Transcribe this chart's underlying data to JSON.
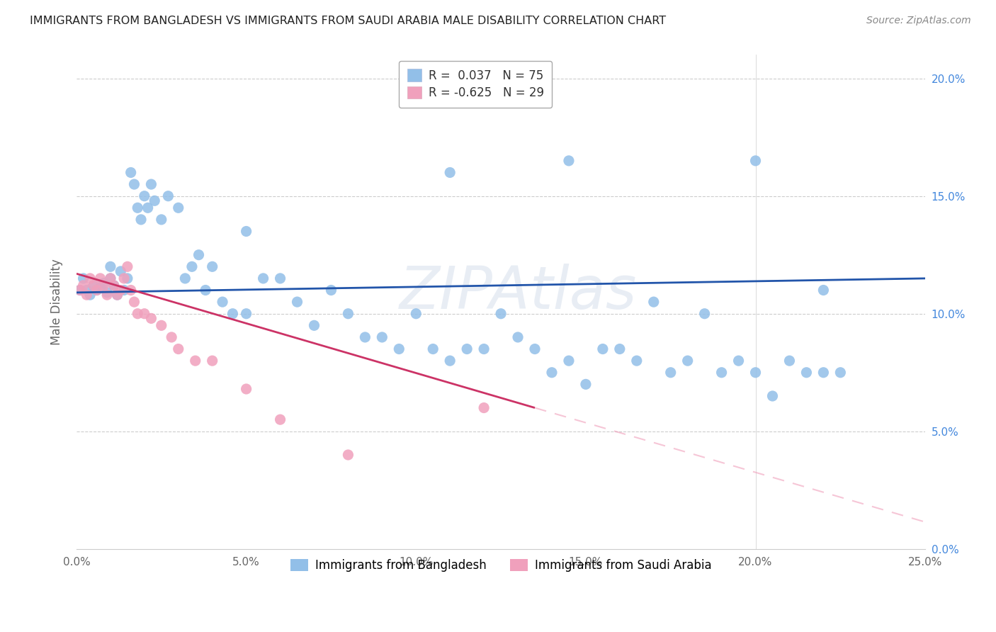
{
  "title": "IMMIGRANTS FROM BANGLADESH VS IMMIGRANTS FROM SAUDI ARABIA MALE DISABILITY CORRELATION CHART",
  "source": "Source: ZipAtlas.com",
  "ylabel": "Male Disability",
  "x_min": 0.0,
  "x_max": 0.25,
  "y_min": 0.0,
  "y_max": 0.21,
  "x_ticks": [
    0.0,
    0.05,
    0.1,
    0.15,
    0.2,
    0.25
  ],
  "x_tick_labels": [
    "0.0%",
    "5.0%",
    "10.0%",
    "15.0%",
    "20.0%",
    "25.0%"
  ],
  "y_ticks": [
    0.0,
    0.05,
    0.1,
    0.15,
    0.2
  ],
  "bangladesh_color": "#92bfe8",
  "saudi_color": "#f0a0bc",
  "bangladesh_line_color": "#2255aa",
  "saudi_line_color": "#cc3366",
  "legend_label1": "Immigrants from Bangladesh",
  "legend_label2": "Immigrants from Saudi Arabia",
  "watermark": "ZIPAtlas",
  "bangladesh_x": [
    0.001,
    0.002,
    0.003,
    0.004,
    0.005,
    0.006,
    0.007,
    0.008,
    0.009,
    0.01,
    0.01,
    0.011,
    0.012,
    0.013,
    0.014,
    0.015,
    0.016,
    0.017,
    0.018,
    0.019,
    0.02,
    0.021,
    0.022,
    0.023,
    0.025,
    0.027,
    0.03,
    0.032,
    0.034,
    0.036,
    0.038,
    0.04,
    0.043,
    0.046,
    0.05,
    0.055,
    0.06,
    0.065,
    0.07,
    0.075,
    0.08,
    0.085,
    0.09,
    0.095,
    0.1,
    0.105,
    0.11,
    0.115,
    0.12,
    0.125,
    0.13,
    0.135,
    0.14,
    0.145,
    0.15,
    0.155,
    0.16,
    0.165,
    0.17,
    0.175,
    0.18,
    0.185,
    0.19,
    0.195,
    0.2,
    0.205,
    0.21,
    0.215,
    0.22,
    0.225,
    0.05,
    0.11,
    0.145,
    0.2,
    0.22
  ],
  "bangladesh_y": [
    0.11,
    0.115,
    0.11,
    0.108,
    0.112,
    0.11,
    0.111,
    0.113,
    0.109,
    0.115,
    0.12,
    0.112,
    0.108,
    0.118,
    0.11,
    0.115,
    0.16,
    0.155,
    0.145,
    0.14,
    0.15,
    0.145,
    0.155,
    0.148,
    0.14,
    0.15,
    0.145,
    0.115,
    0.12,
    0.125,
    0.11,
    0.12,
    0.105,
    0.1,
    0.1,
    0.115,
    0.115,
    0.105,
    0.095,
    0.11,
    0.1,
    0.09,
    0.09,
    0.085,
    0.1,
    0.085,
    0.08,
    0.085,
    0.085,
    0.1,
    0.09,
    0.085,
    0.075,
    0.08,
    0.07,
    0.085,
    0.085,
    0.08,
    0.105,
    0.075,
    0.08,
    0.1,
    0.075,
    0.08,
    0.075,
    0.065,
    0.08,
    0.075,
    0.075,
    0.075,
    0.135,
    0.16,
    0.165,
    0.165,
    0.11
  ],
  "saudi_x": [
    0.001,
    0.002,
    0.003,
    0.004,
    0.005,
    0.006,
    0.007,
    0.008,
    0.009,
    0.01,
    0.011,
    0.012,
    0.013,
    0.014,
    0.015,
    0.016,
    0.017,
    0.018,
    0.02,
    0.022,
    0.025,
    0.028,
    0.03,
    0.035,
    0.04,
    0.05,
    0.06,
    0.08,
    0.12
  ],
  "saudi_y": [
    0.11,
    0.112,
    0.108,
    0.115,
    0.112,
    0.11,
    0.115,
    0.112,
    0.108,
    0.115,
    0.112,
    0.108,
    0.11,
    0.115,
    0.12,
    0.11,
    0.105,
    0.1,
    0.1,
    0.098,
    0.095,
    0.09,
    0.085,
    0.08,
    0.08,
    0.068,
    0.055,
    0.04,
    0.06
  ],
  "bangladesh_trend_x0": 0.0,
  "bangladesh_trend_y0": 0.109,
  "bangladesh_trend_x1": 0.25,
  "bangladesh_trend_y1": 0.115,
  "saudi_trend_x0": 0.0,
  "saudi_trend_y0": 0.117,
  "saudi_trend_x1": 0.135,
  "saudi_trend_y1": 0.06
}
